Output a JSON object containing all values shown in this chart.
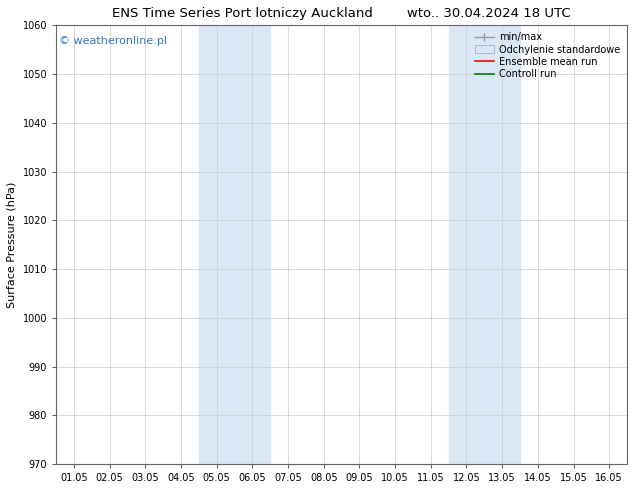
{
  "title_left": "ENS Time Series Port lotniczy Auckland",
  "title_right": "wto.. 30.04.2024 18 UTC",
  "ylabel": "Surface Pressure (hPa)",
  "ylim": [
    970,
    1060
  ],
  "yticks": [
    970,
    980,
    990,
    1000,
    1010,
    1020,
    1030,
    1040,
    1050,
    1060
  ],
  "xtick_labels": [
    "01.05",
    "02.05",
    "03.05",
    "04.05",
    "05.05",
    "06.05",
    "07.05",
    "08.05",
    "09.05",
    "10.05",
    "11.05",
    "12.05",
    "13.05",
    "14.05",
    "15.05",
    "16.05"
  ],
  "xtick_positions": [
    0,
    1,
    2,
    3,
    4,
    5,
    6,
    7,
    8,
    9,
    10,
    11,
    12,
    13,
    14,
    15
  ],
  "xlim_min": -0.5,
  "xlim_max": 15.5,
  "shaded_regions": [
    {
      "xmin": 3.5,
      "xmax": 5.5,
      "color": "#dae8f5"
    },
    {
      "xmin": 10.5,
      "xmax": 12.5,
      "color": "#dae8f5"
    }
  ],
  "watermark": "© weatheronline.pl",
  "watermark_color": "#3377bb",
  "bg_color": "#ffffff",
  "grid_color": "#cccccc",
  "title_fontsize": 9.5,
  "tick_fontsize": 7,
  "ylabel_fontsize": 8,
  "legend_fontsize": 7,
  "watermark_fontsize": 8
}
